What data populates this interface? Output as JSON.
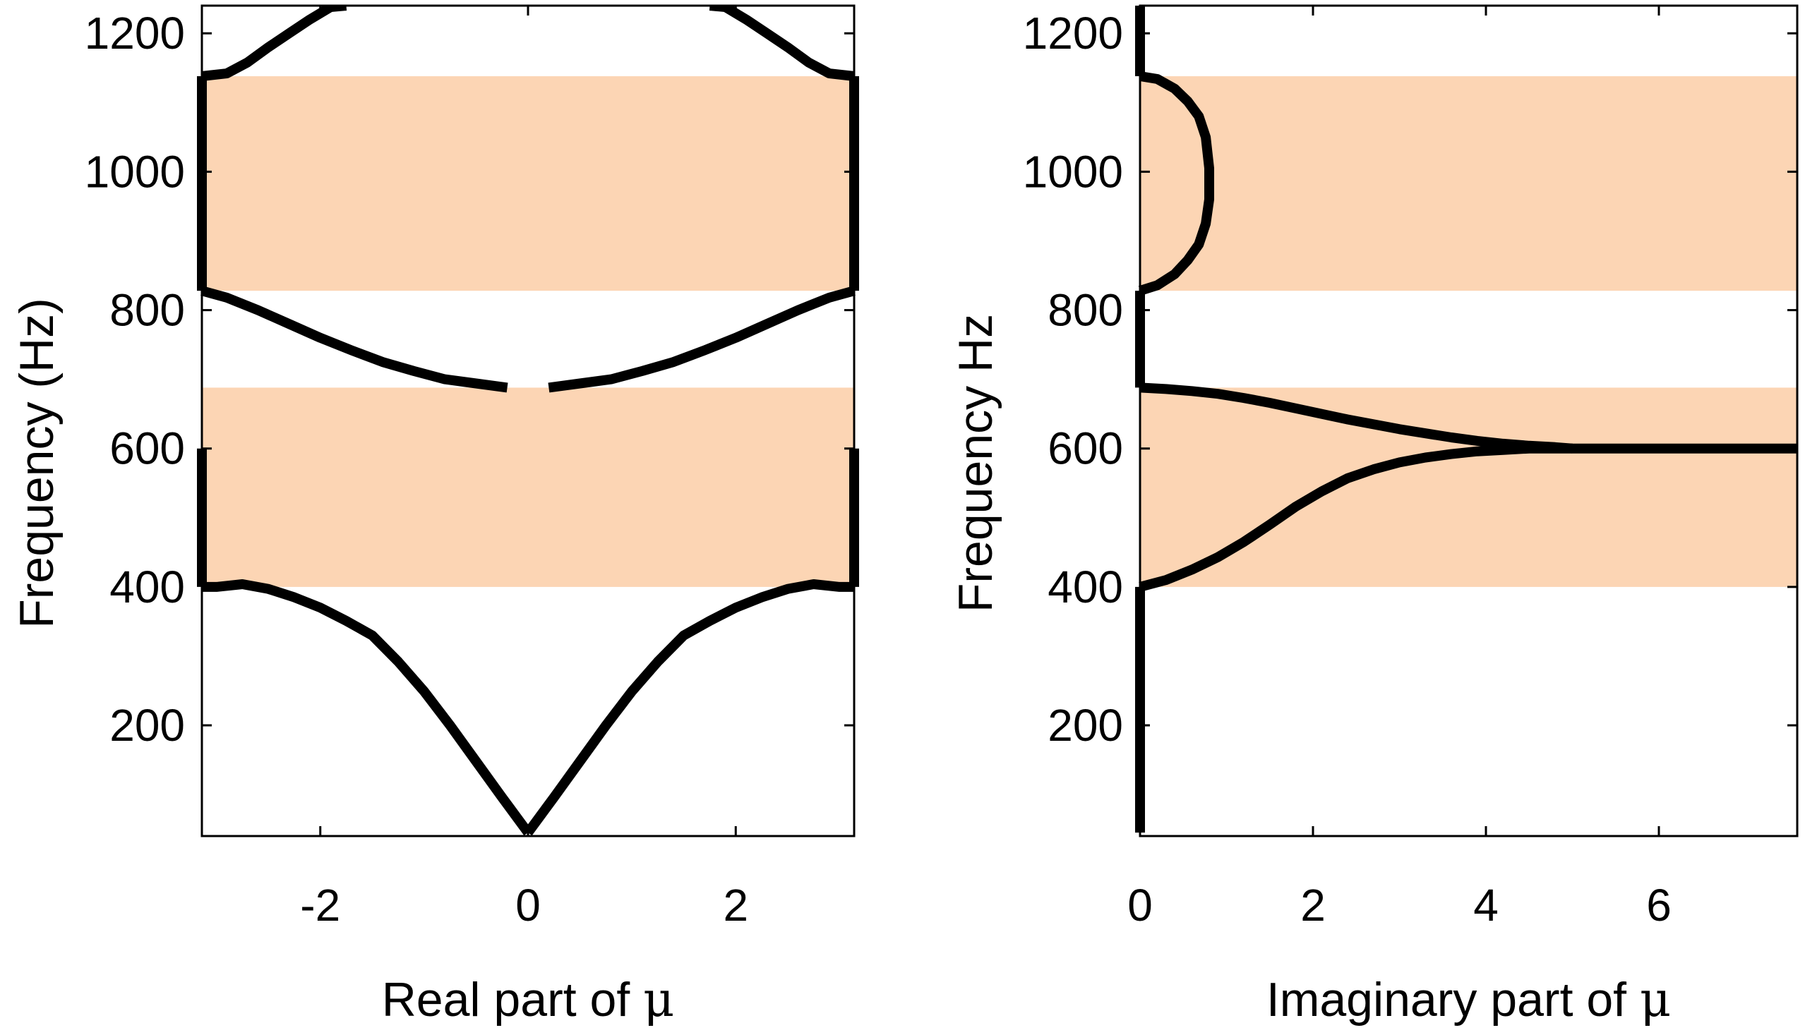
{
  "chart_data": [
    {
      "type": "line",
      "panel": "left",
      "xlabel": "Real part of",
      "xlabel_symbol": "μ",
      "ylabel": "Frequency (Hz)",
      "xlim": [
        -3.14,
        3.14
      ],
      "ylim": [
        40,
        1240
      ],
      "xticks": [
        -2,
        0,
        2
      ],
      "yticks": [
        200,
        400,
        600,
        800,
        1000,
        1200
      ],
      "grid": false,
      "band_color": "#fcd5b4",
      "line_color": "#000000",
      "bands": [
        [
          400,
          688
        ],
        [
          828,
          1138
        ]
      ],
      "series": [
        {
          "x": [
            0,
            0.25,
            0.5,
            0.75,
            1.0,
            1.25,
            1.5,
            1.75,
            2.0,
            2.25,
            2.5,
            2.75,
            3.0,
            3.14
          ],
          "y": [
            45,
            96,
            148,
            200,
            249,
            292,
            330,
            351,
            370,
            385,
            397,
            404,
            400,
            400
          ]
        },
        {
          "x": [
            0,
            -0.25,
            -0.5,
            -0.75,
            -1.0,
            -1.25,
            -1.5,
            -1.75,
            -2.0,
            -2.25,
            -2.5,
            -2.75,
            -3.0,
            -3.14
          ],
          "y": [
            45,
            96,
            148,
            200,
            249,
            292,
            330,
            351,
            370,
            385,
            397,
            404,
            400,
            400
          ]
        },
        {
          "x": [
            3.14,
            3.14
          ],
          "y": [
            400,
            600
          ]
        },
        {
          "x": [
            -3.14,
            -3.14
          ],
          "y": [
            400,
            600
          ]
        },
        {
          "x": [
            0.2,
            0.5,
            0.8,
            1.1,
            1.4,
            1.7,
            2.0,
            2.3,
            2.6,
            2.9,
            3.14
          ],
          "y": [
            688,
            694,
            700,
            712,
            725,
            742,
            760,
            780,
            800,
            818,
            828
          ]
        },
        {
          "x": [
            -0.2,
            -0.5,
            -0.8,
            -1.1,
            -1.4,
            -1.7,
            -2.0,
            -2.3,
            -2.6,
            -2.9,
            -3.14
          ],
          "y": [
            688,
            694,
            700,
            712,
            725,
            742,
            760,
            780,
            800,
            818,
            828
          ]
        },
        {
          "x": [
            3.14,
            3.14
          ],
          "y": [
            828,
            1138
          ]
        },
        {
          "x": [
            -3.14,
            -3.14
          ],
          "y": [
            828,
            1138
          ]
        },
        {
          "x": [
            3.14,
            2.9,
            2.7,
            2.5,
            2.3,
            2.1,
            1.9,
            1.75
          ],
          "y": [
            1138,
            1142,
            1158,
            1180,
            1200,
            1220,
            1238,
            1240
          ]
        },
        {
          "x": [
            -3.14,
            -2.9,
            -2.7,
            -2.5,
            -2.3,
            -2.1,
            -1.9,
            -1.75
          ],
          "y": [
            1138,
            1142,
            1158,
            1180,
            1200,
            1220,
            1238,
            1240
          ]
        }
      ]
    },
    {
      "type": "line",
      "panel": "right",
      "xlabel": "Imaginary part of",
      "xlabel_symbol": "μ",
      "ylabel": "Frequency Hz",
      "xlim": [
        0,
        7.6
      ],
      "ylim": [
        40,
        1240
      ],
      "xticks": [
        0,
        2,
        4,
        6
      ],
      "yticks": [
        200,
        400,
        600,
        800,
        1000,
        1200
      ],
      "grid": false,
      "band_color": "#fcd5b4",
      "line_color": "#000000",
      "bands": [
        [
          400,
          688
        ],
        [
          828,
          1138
        ]
      ],
      "series": [
        {
          "x": [
            0,
            0
          ],
          "y": [
            45,
            400
          ]
        },
        {
          "x": [
            0,
            0.3,
            0.6,
            0.9,
            1.2,
            1.5,
            1.8,
            2.1,
            2.4,
            2.7,
            3.0,
            3.3,
            3.6,
            3.9,
            4.2,
            4.5,
            4.8,
            5.0
          ],
          "y": [
            400,
            410,
            425,
            443,
            465,
            490,
            516,
            538,
            557,
            570,
            580,
            587,
            592,
            596,
            598,
            600,
            600,
            600
          ]
        },
        {
          "x": [
            0,
            0.3,
            0.6,
            0.9,
            1.2,
            1.5,
            1.8,
            2.1,
            2.4,
            2.7,
            3.0,
            3.3,
            3.6,
            3.9,
            4.2,
            4.5,
            4.8,
            5.0
          ],
          "y": [
            688,
            686,
            683,
            679,
            673,
            666,
            658,
            650,
            642,
            635,
            628,
            622,
            616,
            611,
            607,
            604,
            602,
            600
          ]
        },
        {
          "x": [
            5.0,
            7.6
          ],
          "y": [
            600,
            600
          ]
        },
        {
          "x": [
            0,
            0
          ],
          "y": [
            688,
            828
          ]
        },
        {
          "x": [
            0,
            0.2,
            0.4,
            0.55,
            0.68,
            0.76,
            0.8,
            0.8,
            0.76,
            0.68,
            0.55,
            0.4,
            0.2,
            0
          ],
          "y": [
            828,
            836,
            852,
            872,
            895,
            925,
            960,
            1005,
            1050,
            1080,
            1102,
            1120,
            1134,
            1138
          ]
        },
        {
          "x": [
            0,
            0
          ],
          "y": [
            1138,
            1240
          ]
        }
      ]
    }
  ]
}
